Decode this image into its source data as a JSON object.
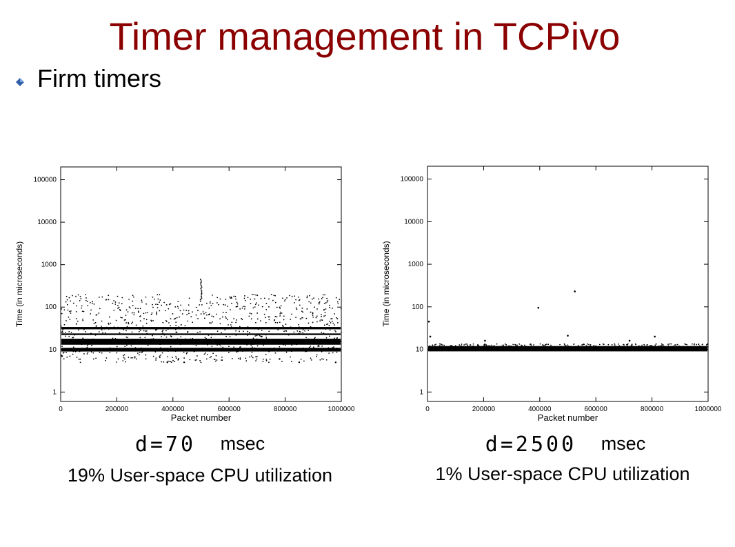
{
  "slide": {
    "title": "Timer management in TCPivo",
    "bullet": "Firm timers"
  },
  "colors": {
    "title": "#8b0000",
    "bullet_icon": "#2f5fa8",
    "points": "#000000"
  },
  "icons": {
    "bullet": "diamond-bullet-icon"
  },
  "captions": [
    {
      "symbol_text": "d=70",
      "unit": "msec",
      "utilization": "19% User-space CPU utilization"
    },
    {
      "symbol_text": "d=2500",
      "unit": "msec",
      "utilization": "1% User-space CPU utilization"
    }
  ],
  "chart_data": [
    {
      "type": "scatter",
      "xlabel": "Packet number",
      "ylabel": "Time (in microseconds)",
      "xlim": [
        0,
        1000000
      ],
      "ylim": [
        0.6,
        200000
      ],
      "yscale": "log",
      "xticks": [
        0,
        200000,
        400000,
        600000,
        800000,
        1000000
      ],
      "xtick_labels": [
        "0",
        "200000",
        "400000",
        "600000",
        "800000",
        "1000000"
      ],
      "yticks": [
        1,
        10,
        100,
        1000,
        10000,
        100000
      ],
      "ytick_labels": [
        "1",
        "10",
        "100",
        "1000",
        "10000",
        "100000"
      ],
      "grid": false,
      "dense_bands": [
        {
          "y_min": 9,
          "y_max": 11
        },
        {
          "y_min": 13,
          "y_max": 18
        },
        {
          "y_min": 22,
          "y_max": 24
        },
        {
          "y_min": 30,
          "y_max": 34
        }
      ],
      "scatter_range": [
        5,
        450
      ],
      "spike": {
        "x": 500000,
        "y_range": [
          150,
          450
        ]
      }
    },
    {
      "type": "scatter",
      "xlabel": "Packet number",
      "ylabel": "Time (in microseconds)",
      "xlim": [
        0,
        1000000
      ],
      "ylim": [
        0.6,
        200000
      ],
      "yscale": "log",
      "xticks": [
        0,
        200000,
        400000,
        600000,
        800000,
        1000000
      ],
      "xtick_labels": [
        "0",
        "200000",
        "400000",
        "600000",
        "800000",
        "1000000"
      ],
      "yticks": [
        1,
        10,
        100,
        1000,
        10000,
        100000
      ],
      "ytick_labels": [
        "1",
        "10",
        "100",
        "1000",
        "10000",
        "100000"
      ],
      "grid": false,
      "dense_bands": [
        {
          "y_min": 9,
          "y_max": 12
        }
      ],
      "scatter_range": [
        10,
        25
      ],
      "outliers": [
        {
          "x": 5000,
          "y": 45
        },
        {
          "x": 10000,
          "y": 20
        },
        {
          "x": 395000,
          "y": 95
        },
        {
          "x": 525000,
          "y": 230
        },
        {
          "x": 500000,
          "y": 21
        },
        {
          "x": 810000,
          "y": 20
        },
        {
          "x": 720000,
          "y": 16
        },
        {
          "x": 205000,
          "y": 16
        }
      ]
    }
  ]
}
